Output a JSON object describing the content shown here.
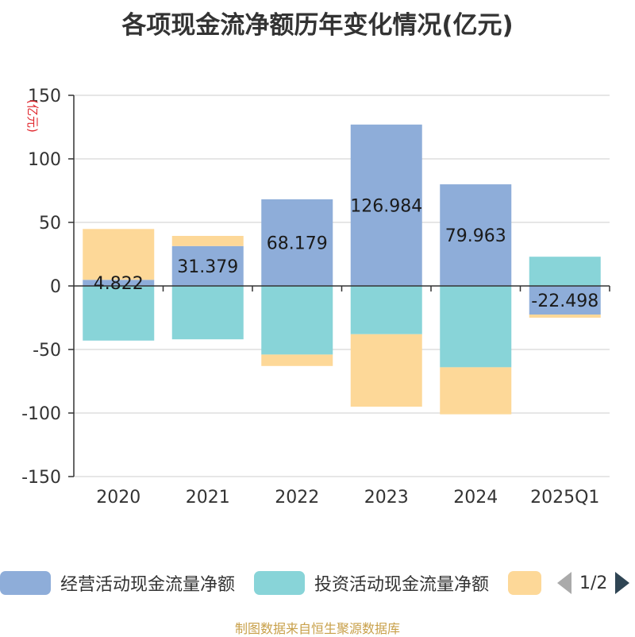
{
  "title": "各项现金流净额历年变化情况(亿元)",
  "source": "制图数据来自恒生聚源数据库",
  "pager": {
    "text": "1/2"
  },
  "colors": {
    "operating": "#8eadd9",
    "investing": "#88d4d8",
    "financing": "#fdd898",
    "axis": "#333333",
    "grid": "#cccccc",
    "unit": "#e0262d"
  },
  "chart_data": {
    "type": "bar",
    "stacked": true,
    "title": "各项现金流净额历年变化情况(亿元)",
    "ylabel": "(亿元)",
    "ylim": [
      -150,
      150
    ],
    "yticks": [
      150,
      100,
      50,
      0,
      -50,
      -100,
      -150
    ],
    "grid": true,
    "legend_position": "bottom",
    "categories": [
      "2020",
      "2021",
      "2022",
      "2023",
      "2024",
      "2025Q1"
    ],
    "series": [
      {
        "name": "经营活动现金流量净额",
        "values": [
          4.822,
          31.379,
          68.179,
          126.984,
          79.963,
          -22.498
        ],
        "labels": [
          "4.822",
          "31.379",
          "68.179",
          "126.984",
          "79.963",
          "-22.498"
        ]
      },
      {
        "name": "投资活动现金流量净额",
        "values": [
          -43,
          -42,
          -54,
          -38,
          -64,
          23
        ]
      },
      {
        "name": "",
        "values": [
          40,
          8,
          -9,
          -57,
          -37,
          -2.5
        ]
      }
    ]
  }
}
